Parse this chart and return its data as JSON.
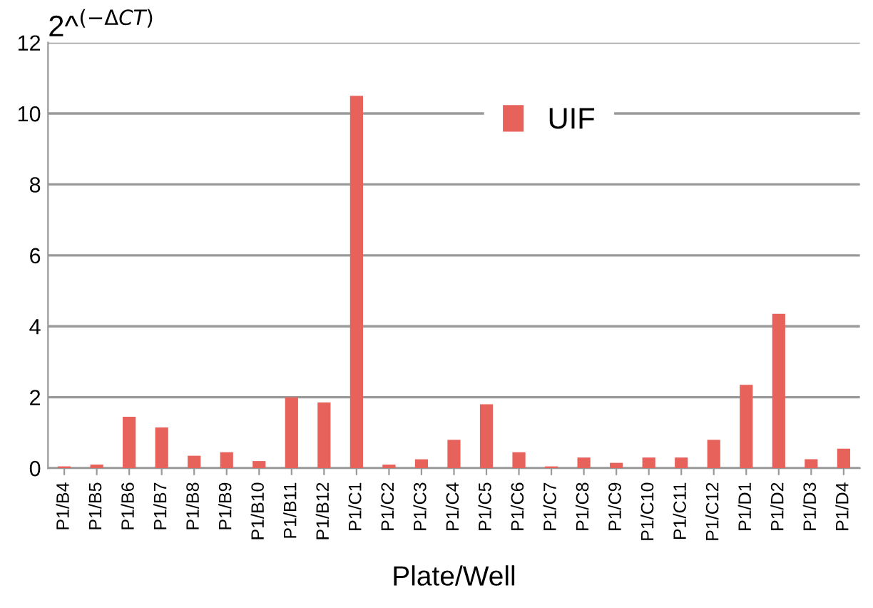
{
  "chart_data": {
    "type": "bar",
    "ylabel": "2^$^{(−ΔCT)}$",
    "xlabel": "Plate/Well",
    "categories": [
      "P1/B4",
      "P1/B5",
      "P1/B6",
      "P1/B7",
      "P1/B8",
      "P1/B9",
      "P1/B10",
      "P1/B11",
      "P1/B12",
      "P1/C1",
      "P1/C2",
      "P1/C3",
      "P1/C4",
      "P1/C5",
      "P1/C6",
      "P1/C7",
      "P1/C8",
      "P1/C9",
      "P1/C10",
      "P1/C11",
      "P1/C12",
      "P1/D1",
      "P1/D2",
      "P1/D3",
      "P1/D4"
    ],
    "series": [
      {
        "name": "UIF",
        "color": "#e8625c",
        "values": [
          0.05,
          0.1,
          1.45,
          1.15,
          0.35,
          0.45,
          0.2,
          2.0,
          1.85,
          10.5,
          0.1,
          0.25,
          0.8,
          1.8,
          0.45,
          0.05,
          0.3,
          0.15,
          0.3,
          0.3,
          0.8,
          2.35,
          4.35,
          0.25,
          0.55
        ]
      }
    ],
    "ylim": [
      0,
      12
    ],
    "yticks": [
      0,
      2,
      4,
      6,
      8,
      10,
      12
    ],
    "grid": "y",
    "legend": "top right"
  }
}
